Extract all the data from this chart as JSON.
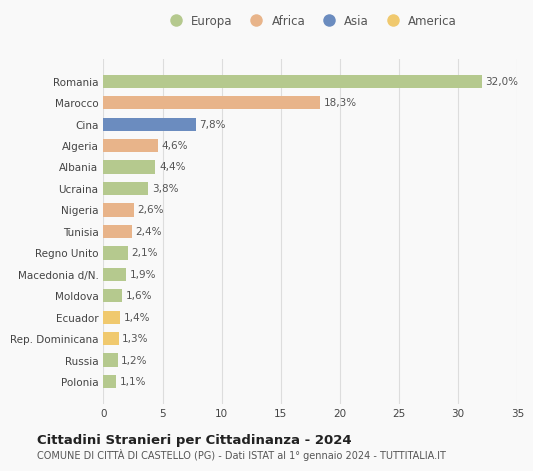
{
  "categories": [
    "Romania",
    "Marocco",
    "Cina",
    "Algeria",
    "Albania",
    "Ucraina",
    "Nigeria",
    "Tunisia",
    "Regno Unito",
    "Macedonia d/N.",
    "Moldova",
    "Ecuador",
    "Rep. Dominicana",
    "Russia",
    "Polonia"
  ],
  "values": [
    32.0,
    18.3,
    7.8,
    4.6,
    4.4,
    3.8,
    2.6,
    2.4,
    2.1,
    1.9,
    1.6,
    1.4,
    1.3,
    1.2,
    1.1
  ],
  "labels": [
    "32,0%",
    "18,3%",
    "7,8%",
    "4,6%",
    "4,4%",
    "3,8%",
    "2,6%",
    "2,4%",
    "2,1%",
    "1,9%",
    "1,6%",
    "1,4%",
    "1,3%",
    "1,2%",
    "1,1%"
  ],
  "continents": [
    "Europa",
    "Africa",
    "Asia",
    "Africa",
    "Europa",
    "Europa",
    "Africa",
    "Africa",
    "Europa",
    "Europa",
    "Europa",
    "America",
    "America",
    "Europa",
    "Europa"
  ],
  "continent_colors": {
    "Europa": "#b5c98e",
    "Africa": "#e8b48a",
    "Asia": "#6b8cbf",
    "America": "#f0c96e"
  },
  "legend_order": [
    "Europa",
    "Africa",
    "Asia",
    "America"
  ],
  "title": "Cittadini Stranieri per Cittadinanza - 2024",
  "subtitle": "COMUNE DI CITTÀ DI CASTELLO (PG) - Dati ISTAT al 1° gennaio 2024 - TUTTITALIA.IT",
  "xlim": [
    0,
    35
  ],
  "xticks": [
    0,
    5,
    10,
    15,
    20,
    25,
    30,
    35
  ],
  "background_color": "#f9f9f9",
  "grid_color": "#dddddd",
  "bar_height": 0.62,
  "label_fontsize": 7.5,
  "tick_fontsize": 7.5,
  "title_fontsize": 9.5,
  "subtitle_fontsize": 7.0,
  "legend_fontsize": 8.5
}
